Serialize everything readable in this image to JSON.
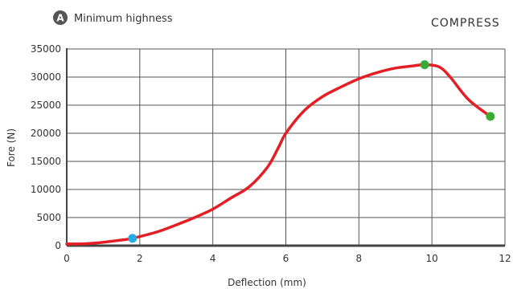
{
  "header": {
    "badge_letter": "A",
    "title": "Minimum highness",
    "section": "COMPRESS"
  },
  "colors": {
    "curve": "#e31e24",
    "start_marker": "#29abe2",
    "end_marker": "#3aaa35",
    "axis": "#444444",
    "grid": "#555555",
    "badge": "#555555"
  },
  "chart_data": {
    "type": "line",
    "title": "",
    "xlabel": "Deflection (mm)",
    "ylabel": "Fore (N)",
    "xlim": [
      0,
      12
    ],
    "ylim": [
      0,
      35000
    ],
    "xticks": [
      0,
      2,
      4,
      6,
      8,
      10,
      12
    ],
    "yticks": [
      0,
      5000,
      10000,
      15000,
      20000,
      25000,
      30000,
      35000
    ],
    "grid": true,
    "series": [
      {
        "x": [
          0,
          0.5,
          1.0,
          1.5,
          1.8,
          2.5,
          3.0,
          3.5,
          4.0,
          4.5,
          5.0,
          5.5,
          5.8,
          6.0,
          6.5,
          7.0,
          7.5,
          8.0,
          8.5,
          9.0,
          9.5,
          9.8,
          10.2,
          10.5,
          11.0,
          11.6
        ],
        "y": [
          300,
          350,
          600,
          1000,
          1300,
          2500,
          3700,
          5000,
          6500,
          8500,
          10500,
          14000,
          17500,
          20000,
          24000,
          26500,
          28200,
          29700,
          30800,
          31600,
          32000,
          32200,
          31800,
          30000,
          26000,
          23000
        ]
      }
    ],
    "markers": [
      {
        "x": 1.8,
        "y": 1300,
        "color": "#29abe2"
      },
      {
        "x": 9.8,
        "y": 32200,
        "color": "#3aaa35"
      },
      {
        "x": 11.6,
        "y": 23000,
        "color": "#3aaa35"
      }
    ]
  }
}
